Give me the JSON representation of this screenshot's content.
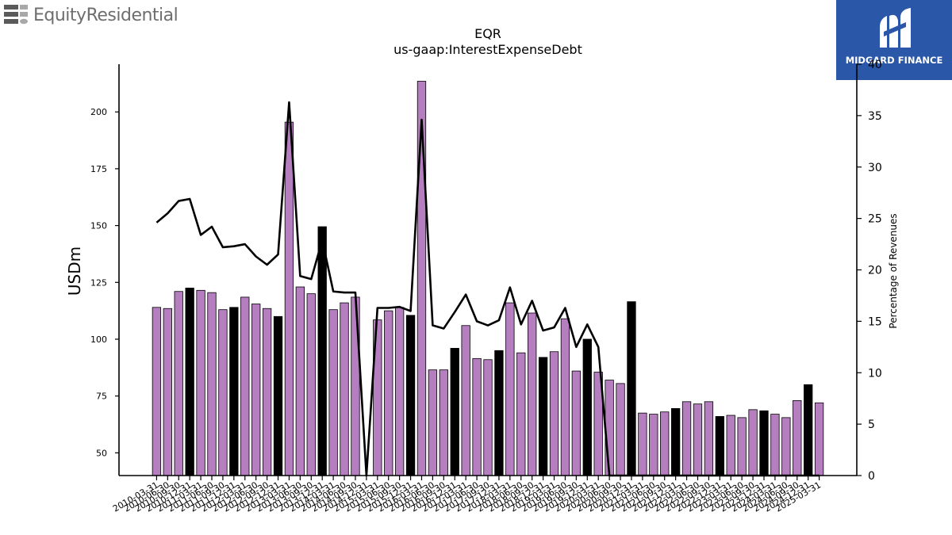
{
  "logos": {
    "left_brand": "EquityResidential",
    "right_brand": "MIDGARD FINANCE"
  },
  "chart_data": {
    "type": "bar",
    "title": "EQR",
    "subtitle": "us-gaap:InterestExpenseDebt",
    "ylabel": "USDm",
    "y2label": "Percentage of Revenues",
    "ylim": [
      40,
      221
    ],
    "y2lim": [
      0,
      40
    ],
    "yticks": [
      50,
      75,
      100,
      125,
      150,
      175,
      200
    ],
    "y2ticks": [
      0,
      5,
      10,
      15,
      20,
      25,
      30,
      35,
      40
    ],
    "grid": false,
    "x_tick_labels": [
      "2010-03-31",
      "2010-06-30",
      "2010-09-30",
      "2010-12-31",
      "2011-03-31",
      "2011-06-30",
      "2011-09-30",
      "2011-12-31",
      "2012-03-31",
      "2012-06-30",
      "2012-09-30",
      "2012-12-31",
      "2013-03-31",
      "2013-06-30",
      "2013-09-30",
      "2013-12-31",
      "2014-03-31",
      "2014-06-30",
      "2014-09-30",
      "2014-12-31",
      "2015-03-31",
      "2015-06-30",
      "2015-09-30",
      "2015-12-31",
      "2016-03-31",
      "2016-06-30",
      "2016-09-30",
      "2016-12-31",
      "2017-03-31",
      "2017-06-30",
      "2017-09-30",
      "2017-12-31",
      "2018-03-31",
      "2018-06-30",
      "2018-09-30",
      "2018-12-31",
      "2019-03-31",
      "2019-06-30",
      "2019-09-30",
      "2019-12-31",
      "2020-03-31",
      "2020-06-30",
      "2020-09-30",
      "2020-12-31",
      "2021-03-31",
      "2021-06-30",
      "2021-09-30",
      "2021-12-31",
      "2022-03-31",
      "2022-06-30",
      "2022-09-30",
      "2022-12-31",
      "2023-03-31",
      "2023-06-30",
      "2023-09-30",
      "2023-12-31",
      "2024-03-31",
      "2024-06-30",
      "2024-09-30",
      "2024-12-31",
      "2025-03-31"
    ],
    "categories": [
      "2010-03-31",
      "2010-06-30",
      "2010-09-30",
      "2010-12-31",
      "2011-03-31",
      "2011-06-30",
      "2011-09-30",
      "2011-12-31",
      "2012-03-31",
      "2012-06-30",
      "2012-09-30",
      "2012-12-31",
      "2013-03-31",
      "2013-06-30",
      "2013-09-30",
      "2013-12-31",
      "2014-03-31",
      "2014-06-30",
      "2014-09-30",
      "2014-12-31",
      "2015-03-31",
      "2015-06-30",
      "2015-09-30",
      "2015-12-31",
      "2016-03-31",
      "2016-06-30",
      "2016-09-30",
      "2016-12-31",
      "2017-03-31",
      "2017-06-30",
      "2017-09-30",
      "2017-12-31",
      "2018-03-31",
      "2018-06-30",
      "2018-09-30",
      "2018-12-31",
      "2019-03-31",
      "2019-06-30",
      "2019-09-30",
      "2019-12-31",
      "2020-03-31",
      "2020-06-30",
      "2020-09-30",
      "2020-12-31",
      "2021-03-31",
      "2021-06-30",
      "2021-09-30",
      "2021-12-31",
      "2022-03-31",
      "2022-06-30",
      "2022-09-30",
      "2022-12-31",
      "2023-03-31",
      "2023-06-30",
      "2023-09-30",
      "2023-12-31",
      "2024-03-31",
      "2024-06-30",
      "2024-09-30",
      "2024-12-31",
      "2025-03-31"
    ],
    "series": [
      {
        "type": "bar",
        "axis": "left",
        "values": [
          114,
          113.5,
          121,
          122.5,
          121.5,
          120.5,
          113,
          114,
          118.5,
          115.5,
          113.5,
          110,
          195.5,
          123,
          120,
          149.5,
          113,
          116,
          118.5,
          null,
          108.5,
          112.5,
          114,
          110.5,
          213.5,
          86.5,
          86.5,
          96,
          106,
          91.5,
          91,
          95,
          116,
          94,
          111.5,
          92,
          94.5,
          109,
          86,
          100,
          85.5,
          82,
          80.5,
          116.5,
          67.5,
          67,
          68,
          69.5,
          72.5,
          71.5,
          72.5,
          66,
          66.5,
          65.5,
          69,
          68.5,
          67,
          65.5,
          73,
          80,
          72
        ],
        "highlight": [
          false,
          false,
          false,
          true,
          false,
          false,
          false,
          true,
          false,
          false,
          false,
          true,
          false,
          false,
          false,
          true,
          false,
          false,
          false,
          true,
          false,
          false,
          false,
          true,
          false,
          false,
          false,
          true,
          false,
          false,
          false,
          true,
          false,
          false,
          false,
          true,
          false,
          false,
          false,
          true,
          false,
          false,
          false,
          true,
          false,
          false,
          false,
          true,
          false,
          false,
          false,
          true,
          false,
          false,
          false,
          true,
          false,
          false,
          false,
          true,
          false
        ],
        "color": "#b57ebf",
        "highlight_color": "#000000"
      },
      {
        "type": "line",
        "axis": "right",
        "color": "#000000",
        "values": [
          24.6,
          25.5,
          26.7,
          26.9,
          23.4,
          24.2,
          22.2,
          22.3,
          22.5,
          21.3,
          20.5,
          21.5,
          36.3,
          19.4,
          19.1,
          22.9,
          17.9,
          17.8,
          17.8,
          0,
          16.3,
          16.3,
          16.4,
          16,
          34.6,
          14.6,
          14.3,
          15.9,
          17.6,
          15,
          14.6,
          15.1,
          18.3,
          14.7,
          17,
          14.1,
          14.4,
          16.3,
          12.5,
          14.7,
          12.5,
          0,
          0,
          0,
          0,
          0,
          0,
          0,
          0,
          0,
          0,
          0,
          0,
          0,
          0,
          0,
          0,
          0,
          0,
          0,
          0
        ]
      }
    ]
  }
}
